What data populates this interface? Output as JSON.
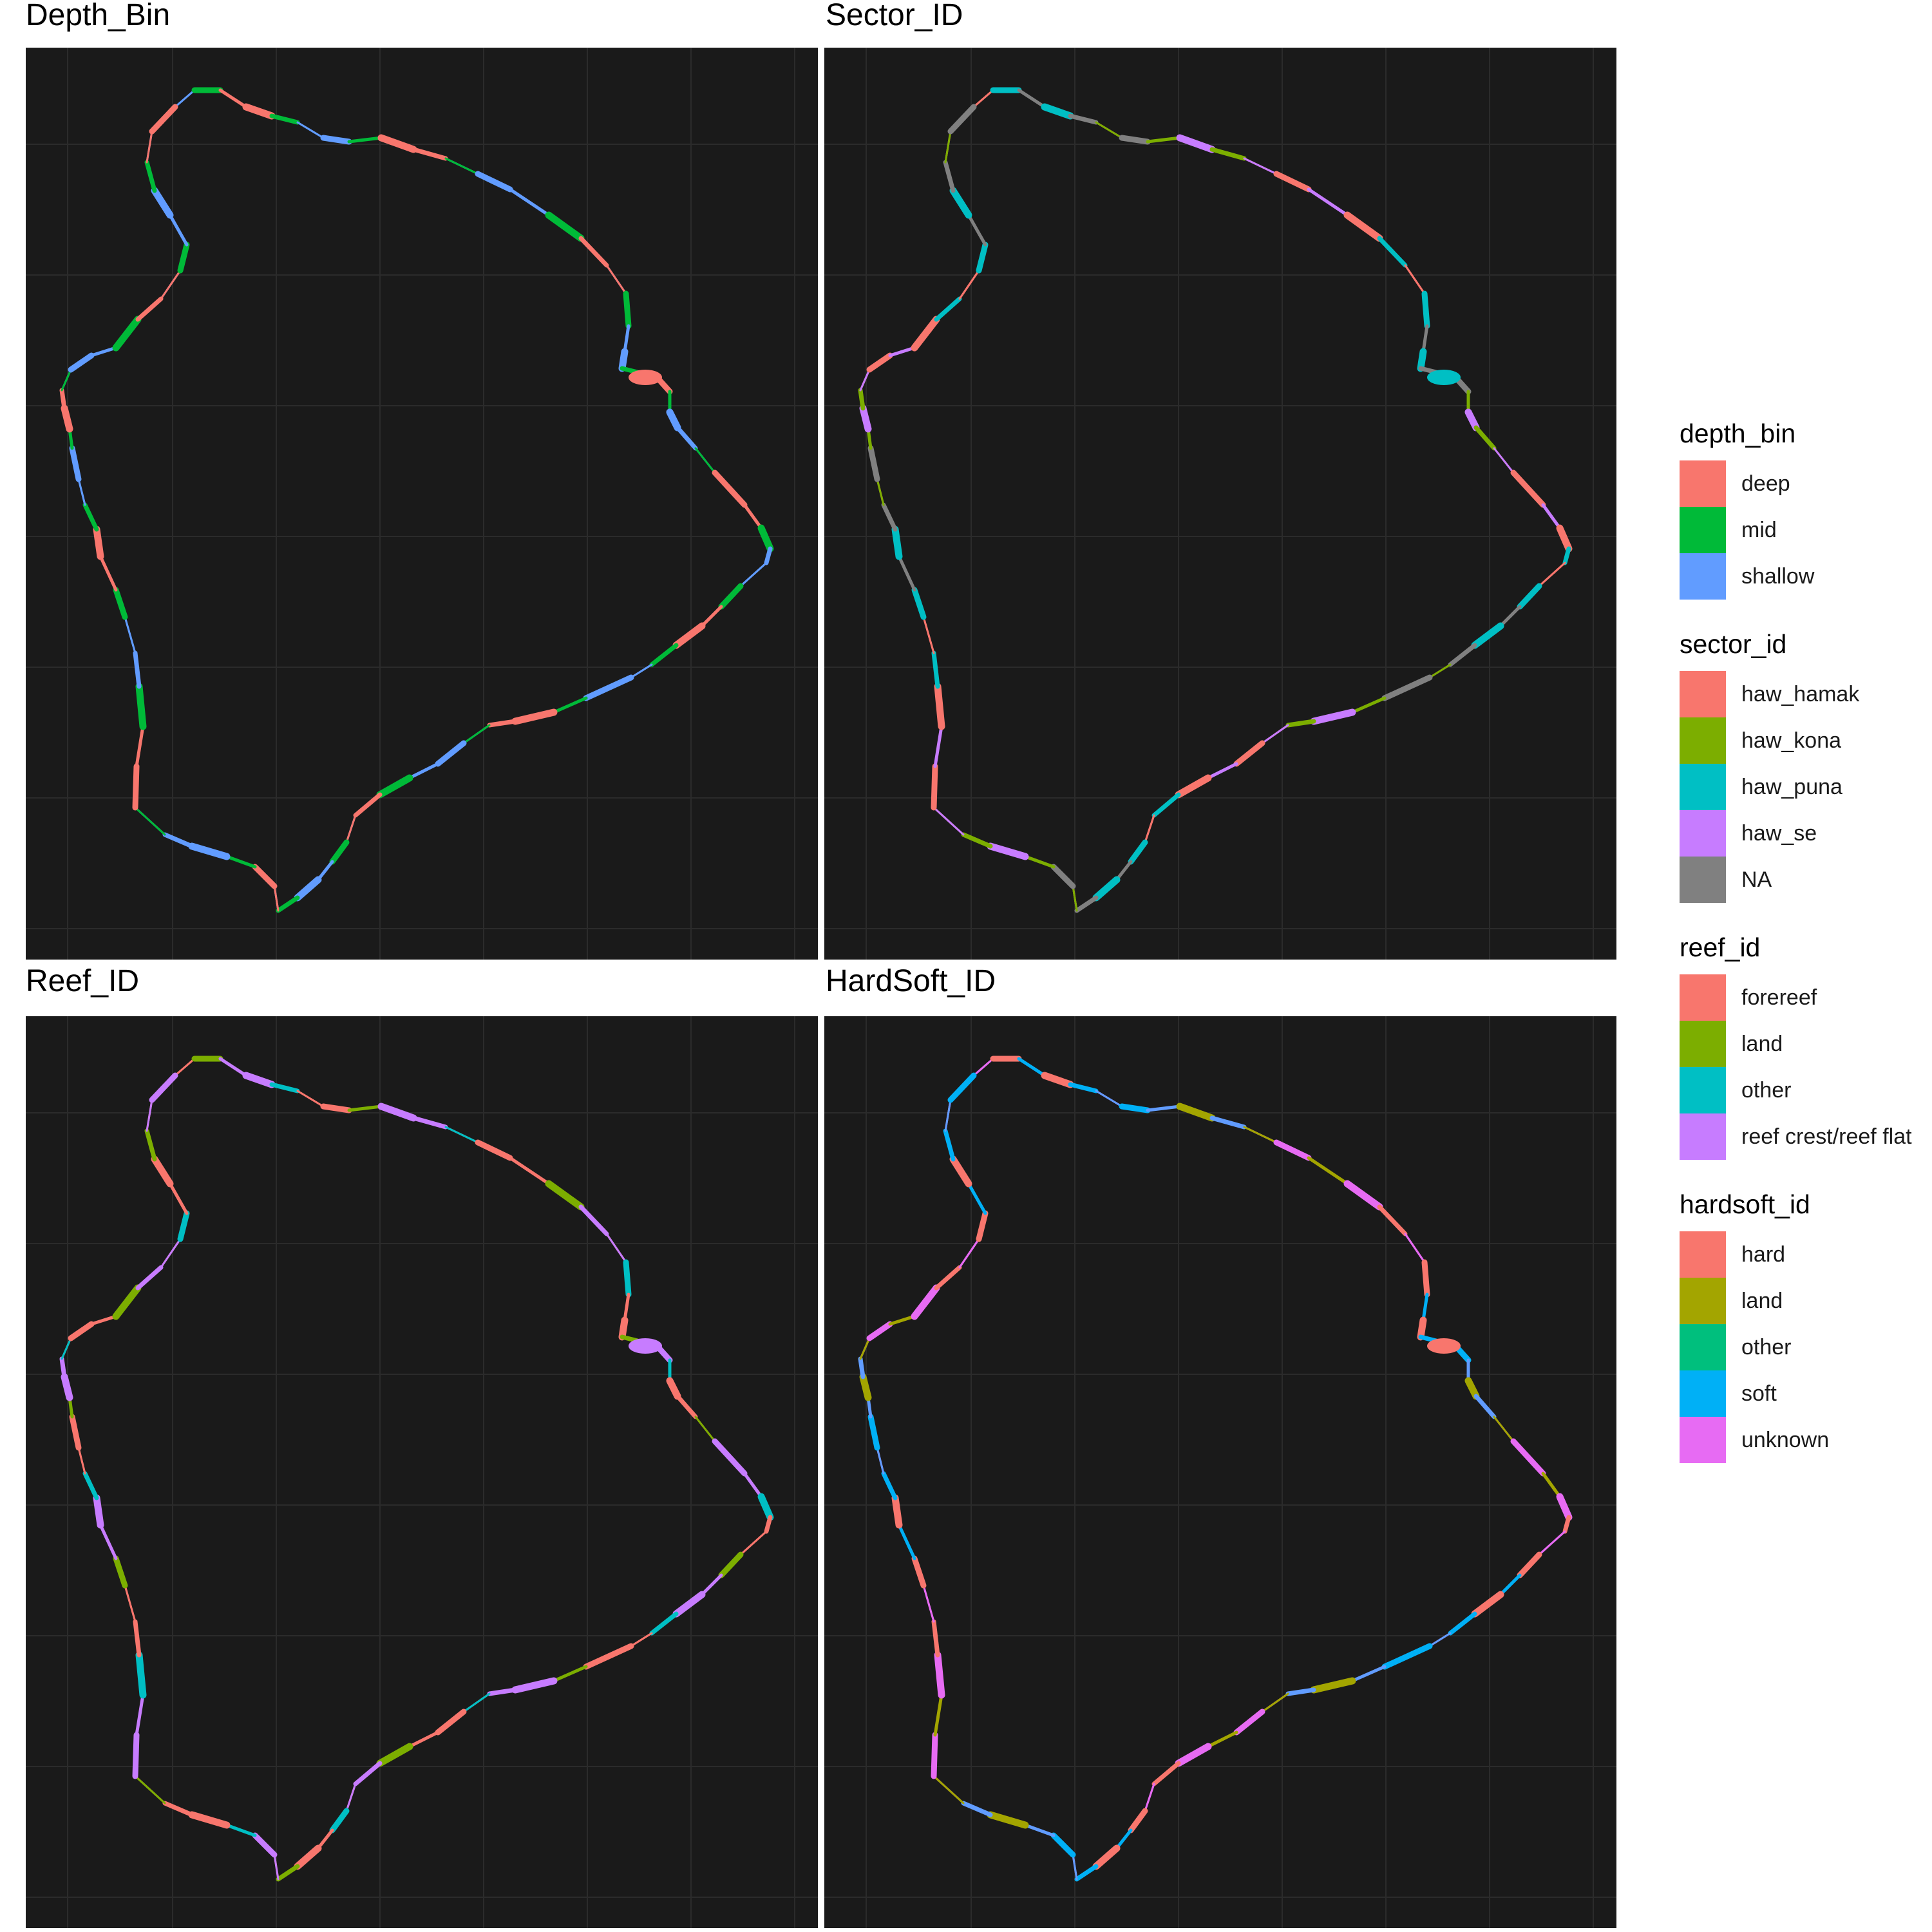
{
  "panels": [
    {
      "id": "depth",
      "title": "Depth_Bin"
    },
    {
      "id": "sector",
      "title": "Sector_ID"
    },
    {
      "id": "reef",
      "title": "Reef_ID"
    },
    {
      "id": "hardsoft",
      "title": "HardSoft_ID"
    }
  ],
  "colors": {
    "panel_background": "#1a1a1a",
    "grid": "#2b2b2b"
  },
  "legends": [
    {
      "title": "depth_bin",
      "items": [
        {
          "label": "deep",
          "color": "#F8766D"
        },
        {
          "label": "mid",
          "color": "#00BA38"
        },
        {
          "label": "shallow",
          "color": "#619CFF"
        }
      ]
    },
    {
      "title": "sector_id",
      "items": [
        {
          "label": "haw_hamak",
          "color": "#F8766D"
        },
        {
          "label": "haw_kona",
          "color": "#7CAE00"
        },
        {
          "label": "haw_puna",
          "color": "#00BFC4"
        },
        {
          "label": "haw_se",
          "color": "#C77CFF"
        },
        {
          "label": "NA",
          "color": "#808080"
        }
      ]
    },
    {
      "title": "reef_id",
      "items": [
        {
          "label": "forereef",
          "color": "#F8766D"
        },
        {
          "label": "land",
          "color": "#7CAE00"
        },
        {
          "label": "other",
          "color": "#00BFC4"
        },
        {
          "label": "reef crest/reef flat",
          "color": "#C77CFF"
        }
      ]
    },
    {
      "title": "hardsoft_id",
      "items": [
        {
          "label": "hard",
          "color": "#F8766D"
        },
        {
          "label": "land",
          "color": "#A3A500"
        },
        {
          "label": "other",
          "color": "#00BF7D"
        },
        {
          "label": "soft",
          "color": "#00B0F6"
        },
        {
          "label": "unknown",
          "color": "#E76BF3"
        }
      ]
    }
  ],
  "map_segments": {
    "depth": [
      "#619CFF",
      "#00BA38",
      "#F8766D",
      "#00BA38",
      "#619CFF",
      "#00BA38",
      "#F8766D",
      "#00BA38"
    ],
    "sector": [
      "#F8766D",
      "#7CAE00",
      "#00BFC4",
      "#C77CFF",
      "#808080"
    ],
    "reef": [
      "#F8766D",
      "#00BFC4",
      "#C77CFF",
      "#7CAE00"
    ],
    "hardsoft": [
      "#E76BF3",
      "#619CFF",
      "#F8766D",
      "#A3A500",
      "#00B0F6"
    ]
  }
}
